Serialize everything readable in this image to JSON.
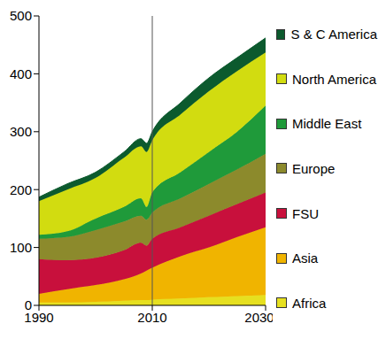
{
  "chart_data": {
    "type": "area",
    "stacked": true,
    "grid": false,
    "legend": "right",
    "x": [
      1990,
      1995,
      2000,
      2005,
      2008,
      2009,
      2010,
      2015,
      2020,
      2025,
      2030
    ],
    "xlim": [
      1990,
      2030
    ],
    "xticks": [
      1990,
      2010,
      2030
    ],
    "ylim": [
      0,
      500
    ],
    "yticks": [
      0,
      100,
      200,
      300,
      400,
      500
    ],
    "reference_x": 2010,
    "series": [
      {
        "name": "Africa",
        "color": "#e6e020",
        "values": [
          5,
          5,
          6,
          8,
          9,
          9,
          10,
          12,
          14,
          16,
          18
        ]
      },
      {
        "name": "Asia",
        "color": "#f0b400",
        "values": [
          15,
          23,
          29,
          37,
          46,
          51,
          55,
          73,
          86,
          102,
          117
        ]
      },
      {
        "name": "FSU",
        "color": "#c8103c",
        "values": [
          60,
          50,
          47,
          50,
          53,
          43,
          50,
          50,
          55,
          57,
          60
        ]
      },
      {
        "name": "Europe",
        "color": "#8c8a2c",
        "values": [
          35,
          40,
          48,
          50,
          47,
          45,
          45,
          50,
          55,
          60,
          67
        ]
      },
      {
        "name": "Middle East",
        "color": "#1f9a3a",
        "values": [
          7,
          10,
          20,
          25,
          30,
          22,
          35,
          45,
          55,
          65,
          83
        ]
      },
      {
        "name": "North America",
        "color": "#d2dc10",
        "values": [
          58,
          72,
          70,
          85,
          90,
          95,
          90,
          100,
          105,
          105,
          92
        ]
      },
      {
        "name": "S & C America",
        "color": "#0c5a2e",
        "values": [
          7,
          10,
          10,
          10,
          13,
          15,
          15,
          20,
          23,
          23,
          25
        ]
      }
    ]
  }
}
